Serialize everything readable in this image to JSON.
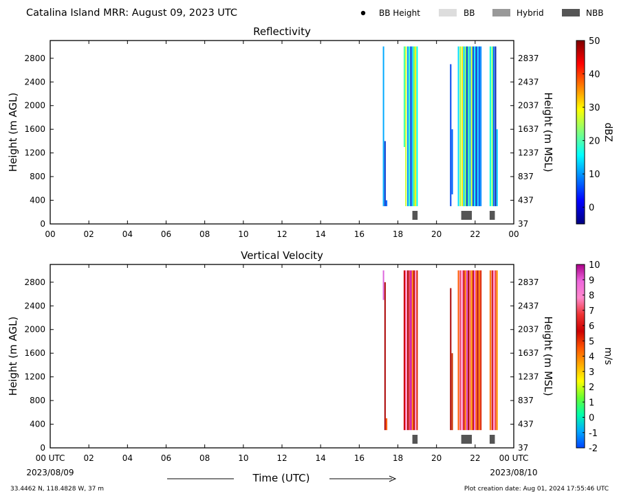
{
  "header": {
    "title": "Catalina Island MRR:  August 09, 2023 UTC",
    "legend": [
      {
        "label": "BB Height",
        "symbol": "dot",
        "color": "#000000"
      },
      {
        "label": "BB",
        "symbol": "box",
        "color": "#dddddd"
      },
      {
        "label": "Hybrid",
        "symbol": "box",
        "color": "#999999"
      },
      {
        "label": "NBB",
        "symbol": "box",
        "color": "#555555"
      }
    ]
  },
  "footer": {
    "location": "33.4462 N, 118.4828 W, 37 m",
    "creation": "Plot creation date: Aug 01, 2024 17:55:46 UTC",
    "xlabel": "Time (UTC)",
    "start_date": "2023/08/09",
    "end_date": "2023/08/10"
  },
  "chart_data": [
    {
      "type": "heatmap",
      "title": "Reflectivity",
      "ylabel_left": "Height (m AGL)",
      "ylabel_right": "Height (m MSL)",
      "x_ticks": [
        "00",
        "02",
        "04",
        "06",
        "08",
        "10",
        "12",
        "14",
        "16",
        "18",
        "20",
        "22",
        "00"
      ],
      "xlim": [
        0,
        24
      ],
      "ylim": [
        0,
        3100
      ],
      "y_ticks_left": [
        0,
        400,
        800,
        1200,
        1600,
        2000,
        2400,
        2800
      ],
      "y_ticks_right": [
        37,
        437,
        837,
        1237,
        1637,
        2037,
        2437,
        2837
      ],
      "colorbar": {
        "label": "dBZ",
        "ticks": [
          0,
          10,
          20,
          30,
          40,
          50
        ],
        "range": [
          -5,
          50
        ],
        "colors": [
          "#00007f",
          "#0000ff",
          "#007fff",
          "#00ffff",
          "#7fff7f",
          "#ffff00",
          "#ff7f00",
          "#ff0000",
          "#7f0000"
        ]
      },
      "streaks": [
        {
          "t": 17.22,
          "ymin": 300,
          "ymax": 3000,
          "color": "#00aaff"
        },
        {
          "t": 17.3,
          "ymin": 300,
          "ymax": 1400,
          "color": "#0033cc"
        },
        {
          "t": 17.38,
          "ymin": 300,
          "ymax": 400,
          "color": "#0066ff"
        },
        {
          "t": 18.3,
          "ymin": 1300,
          "ymax": 3000,
          "color": "#44ffaa"
        },
        {
          "t": 18.38,
          "ymin": 300,
          "ymax": 3000,
          "color": "#ccff33"
        },
        {
          "t": 18.48,
          "ymin": 300,
          "ymax": 3000,
          "color": "#0099ff"
        },
        {
          "t": 18.56,
          "ymin": 300,
          "ymax": 3000,
          "color": "#33ffcc"
        },
        {
          "t": 18.64,
          "ymin": 300,
          "ymax": 3000,
          "color": "#0033dd"
        },
        {
          "t": 18.72,
          "ymin": 300,
          "ymax": 3000,
          "color": "#00ccff"
        },
        {
          "t": 18.8,
          "ymin": 300,
          "ymax": 3000,
          "color": "#66ff66"
        },
        {
          "t": 18.88,
          "ymin": 300,
          "ymax": 3000,
          "color": "#ffee00"
        },
        {
          "t": 18.96,
          "ymin": 300,
          "ymax": 3000,
          "color": "#00ffee"
        },
        {
          "t": 20.7,
          "ymin": 300,
          "ymax": 2700,
          "color": "#0044ee"
        },
        {
          "t": 20.78,
          "ymin": 500,
          "ymax": 1600,
          "color": "#0066ff"
        },
        {
          "t": 21.1,
          "ymin": 300,
          "ymax": 3000,
          "color": "#00ddff"
        },
        {
          "t": 21.2,
          "ymin": 300,
          "ymax": 3000,
          "color": "#99ff33"
        },
        {
          "t": 21.3,
          "ymin": 300,
          "ymax": 3000,
          "color": "#ffee00"
        },
        {
          "t": 21.38,
          "ymin": 300,
          "ymax": 3000,
          "color": "#00ccff"
        },
        {
          "t": 21.46,
          "ymin": 300,
          "ymax": 3000,
          "color": "#66ff66"
        },
        {
          "t": 21.54,
          "ymin": 300,
          "ymax": 3000,
          "color": "#0033cc"
        },
        {
          "t": 21.62,
          "ymin": 300,
          "ymax": 3000,
          "color": "#33ffaa"
        },
        {
          "t": 21.7,
          "ymin": 300,
          "ymax": 3000,
          "color": "#00aaff"
        },
        {
          "t": 21.78,
          "ymin": 300,
          "ymax": 3000,
          "color": "#ccff33"
        },
        {
          "t": 21.86,
          "ymin": 300,
          "ymax": 3000,
          "color": "#0044dd"
        },
        {
          "t": 21.94,
          "ymin": 300,
          "ymax": 3000,
          "color": "#00eeff"
        },
        {
          "t": 22.02,
          "ymin": 300,
          "ymax": 3000,
          "color": "#0022bb"
        },
        {
          "t": 22.1,
          "ymin": 300,
          "ymax": 3000,
          "color": "#00ccff"
        },
        {
          "t": 22.18,
          "ymin": 300,
          "ymax": 3000,
          "color": "#0055ee"
        },
        {
          "t": 22.26,
          "ymin": 300,
          "ymax": 3000,
          "color": "#0088ff"
        },
        {
          "t": 22.75,
          "ymin": 300,
          "ymax": 3000,
          "color": "#00ffdd"
        },
        {
          "t": 22.85,
          "ymin": 300,
          "ymax": 3000,
          "color": "#66ff66"
        },
        {
          "t": 22.93,
          "ymin": 300,
          "ymax": 3000,
          "color": "#0066ff"
        },
        {
          "t": 23.02,
          "ymin": 300,
          "ymax": 3000,
          "color": "#0022aa"
        },
        {
          "t": 23.1,
          "ymin": 300,
          "ymax": 1600,
          "color": "#00ccff"
        }
      ],
      "bright_band": [
        {
          "start": 18.75,
          "end": 19.02,
          "kind": "NBB"
        },
        {
          "start": 21.28,
          "end": 21.83,
          "kind": "NBB"
        },
        {
          "start": 22.75,
          "end": 23.02,
          "kind": "NBB"
        }
      ]
    },
    {
      "type": "heatmap",
      "title": "Vertical Velocity",
      "ylabel_left": "Height (m AGL)",
      "ylabel_right": "Height (m MSL)",
      "x_ticks": [
        "00 UTC",
        "02",
        "04",
        "06",
        "08",
        "10",
        "12",
        "14",
        "16",
        "18",
        "20",
        "22",
        "00 UTC"
      ],
      "xlim": [
        0,
        24
      ],
      "ylim": [
        0,
        3100
      ],
      "y_ticks_left": [
        0,
        400,
        800,
        1200,
        1600,
        2000,
        2400,
        2800
      ],
      "y_ticks_right": [
        37,
        437,
        837,
        1237,
        1637,
        2037,
        2437,
        2837
      ],
      "colorbar": {
        "label": "m/s",
        "ticks": [
          -2,
          -1,
          0,
          1,
          2,
          3,
          4,
          5,
          6,
          7,
          8,
          9,
          10
        ],
        "range": [
          -2,
          10
        ],
        "colors": [
          "#0044ff",
          "#00aaff",
          "#00ffaa",
          "#66ff33",
          "#ffff00",
          "#ffaa00",
          "#ff5500",
          "#cc0000",
          "#ee3333",
          "#ff88cc",
          "#ee66dd",
          "#aa0088"
        ]
      },
      "streaks": [
        {
          "t": 17.22,
          "ymin": 2500,
          "ymax": 3000,
          "color": "#dd66dd"
        },
        {
          "t": 17.3,
          "ymin": 300,
          "ymax": 2800,
          "color": "#aa0000"
        },
        {
          "t": 17.38,
          "ymin": 300,
          "ymax": 500,
          "color": "#ff5500"
        },
        {
          "t": 18.3,
          "ymin": 300,
          "ymax": 3000,
          "color": "#cc0000"
        },
        {
          "t": 18.38,
          "ymin": 300,
          "ymax": 3000,
          "color": "#ff66aa"
        },
        {
          "t": 18.48,
          "ymin": 300,
          "ymax": 3000,
          "color": "#aa0000"
        },
        {
          "t": 18.56,
          "ymin": 300,
          "ymax": 3000,
          "color": "#ee3355"
        },
        {
          "t": 18.64,
          "ymin": 300,
          "ymax": 3000,
          "color": "#cc00aa"
        },
        {
          "t": 18.72,
          "ymin": 300,
          "ymax": 3000,
          "color": "#ff7700"
        },
        {
          "t": 18.8,
          "ymin": 300,
          "ymax": 3000,
          "color": "#bb0000"
        },
        {
          "t": 18.88,
          "ymin": 300,
          "ymax": 3000,
          "color": "#ff88cc"
        },
        {
          "t": 18.96,
          "ymin": 300,
          "ymax": 3000,
          "color": "#dd2200"
        },
        {
          "t": 20.7,
          "ymin": 300,
          "ymax": 2700,
          "color": "#aa0000"
        },
        {
          "t": 20.78,
          "ymin": 300,
          "ymax": 1600,
          "color": "#cc3300"
        },
        {
          "t": 21.1,
          "ymin": 300,
          "ymax": 3000,
          "color": "#ff5500"
        },
        {
          "t": 21.2,
          "ymin": 300,
          "ymax": 3000,
          "color": "#ee3355"
        },
        {
          "t": 21.3,
          "ymin": 300,
          "ymax": 3000,
          "color": "#ff88cc"
        },
        {
          "t": 21.38,
          "ymin": 300,
          "ymax": 3000,
          "color": "#cc0000"
        },
        {
          "t": 21.46,
          "ymin": 300,
          "ymax": 3000,
          "color": "#ff7700"
        },
        {
          "t": 21.54,
          "ymin": 300,
          "ymax": 3000,
          "color": "#dd44cc"
        },
        {
          "t": 21.62,
          "ymin": 300,
          "ymax": 3000,
          "color": "#aa0000"
        },
        {
          "t": 21.7,
          "ymin": 300,
          "ymax": 3000,
          "color": "#ff5566"
        },
        {
          "t": 21.78,
          "ymin": 300,
          "ymax": 3000,
          "color": "#ff9900"
        },
        {
          "t": 21.86,
          "ymin": 300,
          "ymax": 3000,
          "color": "#cc0000"
        },
        {
          "t": 21.94,
          "ymin": 300,
          "ymax": 3000,
          "color": "#ee66dd"
        },
        {
          "t": 22.02,
          "ymin": 300,
          "ymax": 3000,
          "color": "#ff5500"
        },
        {
          "t": 22.1,
          "ymin": 300,
          "ymax": 3000,
          "color": "#bb0000"
        },
        {
          "t": 22.18,
          "ymin": 300,
          "ymax": 3000,
          "color": "#ff7700"
        },
        {
          "t": 22.26,
          "ymin": 300,
          "ymax": 3000,
          "color": "#dd2200"
        },
        {
          "t": 22.75,
          "ymin": 300,
          "ymax": 3000,
          "color": "#ff7700"
        },
        {
          "t": 22.85,
          "ymin": 300,
          "ymax": 3000,
          "color": "#cc0000"
        },
        {
          "t": 22.93,
          "ymin": 300,
          "ymax": 3000,
          "color": "#ff88cc"
        },
        {
          "t": 23.02,
          "ymin": 300,
          "ymax": 3000,
          "color": "#ee3333"
        },
        {
          "t": 23.1,
          "ymin": 300,
          "ymax": 3000,
          "color": "#ff9900"
        }
      ],
      "bright_band": [
        {
          "start": 18.75,
          "end": 19.02,
          "kind": "NBB"
        },
        {
          "start": 21.28,
          "end": 21.83,
          "kind": "NBB"
        },
        {
          "start": 22.75,
          "end": 23.02,
          "kind": "NBB"
        }
      ]
    }
  ]
}
